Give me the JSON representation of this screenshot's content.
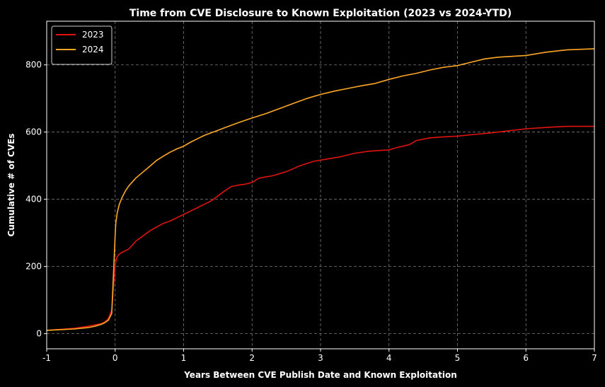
{
  "chart_data": {
    "type": "line",
    "title": "Time from CVE Disclosure to Known Exploitation (2023 vs 2024-YTD)",
    "xlabel": "Years Between CVE Publish Date and Known Exploitation",
    "ylabel": "Cumulative # of CVEs",
    "xlim": [
      -1,
      7
    ],
    "ylim": [
      -45,
      930
    ],
    "xticks": [
      -1,
      0,
      1,
      2,
      3,
      4,
      5,
      6,
      7
    ],
    "xtick_labels": [
      "-1",
      "0",
      "1",
      "2",
      "3",
      "4",
      "5",
      "6",
      "7"
    ],
    "yticks": [
      0,
      200,
      400,
      600,
      800
    ],
    "ytick_labels": [
      "0",
      "200",
      "400",
      "600",
      "800"
    ],
    "grid": true,
    "legend_position": "top-left",
    "background": "#000000",
    "series": [
      {
        "name": "2023",
        "color": "#e0130f",
        "x": [
          -1,
          -0.8,
          -0.6,
          -0.4,
          -0.3,
          -0.2,
          -0.15,
          -0.1,
          -0.05,
          0,
          0.02,
          0.05,
          0.1,
          0.2,
          0.3,
          0.4,
          0.5,
          0.6,
          0.7,
          0.8,
          0.9,
          1.0,
          1.1,
          1.2,
          1.3,
          1.4,
          1.5,
          1.6,
          1.7,
          1.8,
          1.9,
          2.0,
          2.1,
          2.3,
          2.5,
          2.7,
          2.9,
          3.1,
          3.3,
          3.5,
          3.7,
          3.9,
          4.0,
          4.1,
          4.3,
          4.4,
          4.6,
          4.8,
          5.0,
          5.2,
          5.5,
          5.8,
          6.0,
          6.3,
          6.6,
          7.0
        ],
        "y": [
          10,
          13,
          16,
          22,
          26,
          30,
          35,
          45,
          70,
          205,
          225,
          235,
          242,
          252,
          275,
          290,
          305,
          317,
          328,
          335,
          345,
          355,
          365,
          375,
          385,
          395,
          410,
          425,
          438,
          442,
          445,
          450,
          463,
          470,
          482,
          500,
          513,
          520,
          527,
          537,
          543,
          546,
          547,
          553,
          563,
          575,
          583,
          586,
          588,
          592,
          598,
          605,
          610,
          614,
          617,
          617
        ]
      },
      {
        "name": "2024",
        "color": "#ffa726",
        "x": [
          -1,
          -0.8,
          -0.6,
          -0.4,
          -0.3,
          -0.2,
          -0.15,
          -0.1,
          -0.05,
          0,
          0.01,
          0.03,
          0.06,
          0.1,
          0.15,
          0.2,
          0.3,
          0.4,
          0.5,
          0.6,
          0.7,
          0.8,
          0.9,
          1.0,
          1.1,
          1.2,
          1.3,
          1.4,
          1.5,
          1.6,
          1.8,
          2.0,
          2.2,
          2.4,
          2.6,
          2.8,
          3.0,
          3.2,
          3.4,
          3.6,
          3.8,
          4.0,
          4.2,
          4.4,
          4.6,
          4.8,
          5.0,
          5.2,
          5.4,
          5.6,
          6.0,
          6.3,
          6.6,
          7.0
        ],
        "y": [
          10,
          12,
          14,
          18,
          22,
          28,
          33,
          40,
          60,
          295,
          330,
          360,
          385,
          405,
          425,
          440,
          463,
          480,
          497,
          515,
          528,
          540,
          550,
          558,
          570,
          580,
          590,
          598,
          605,
          613,
          628,
          642,
          655,
          670,
          685,
          700,
          712,
          722,
          730,
          738,
          745,
          757,
          767,
          775,
          785,
          793,
          798,
          808,
          818,
          823,
          828,
          838,
          845,
          848
        ]
      }
    ]
  }
}
